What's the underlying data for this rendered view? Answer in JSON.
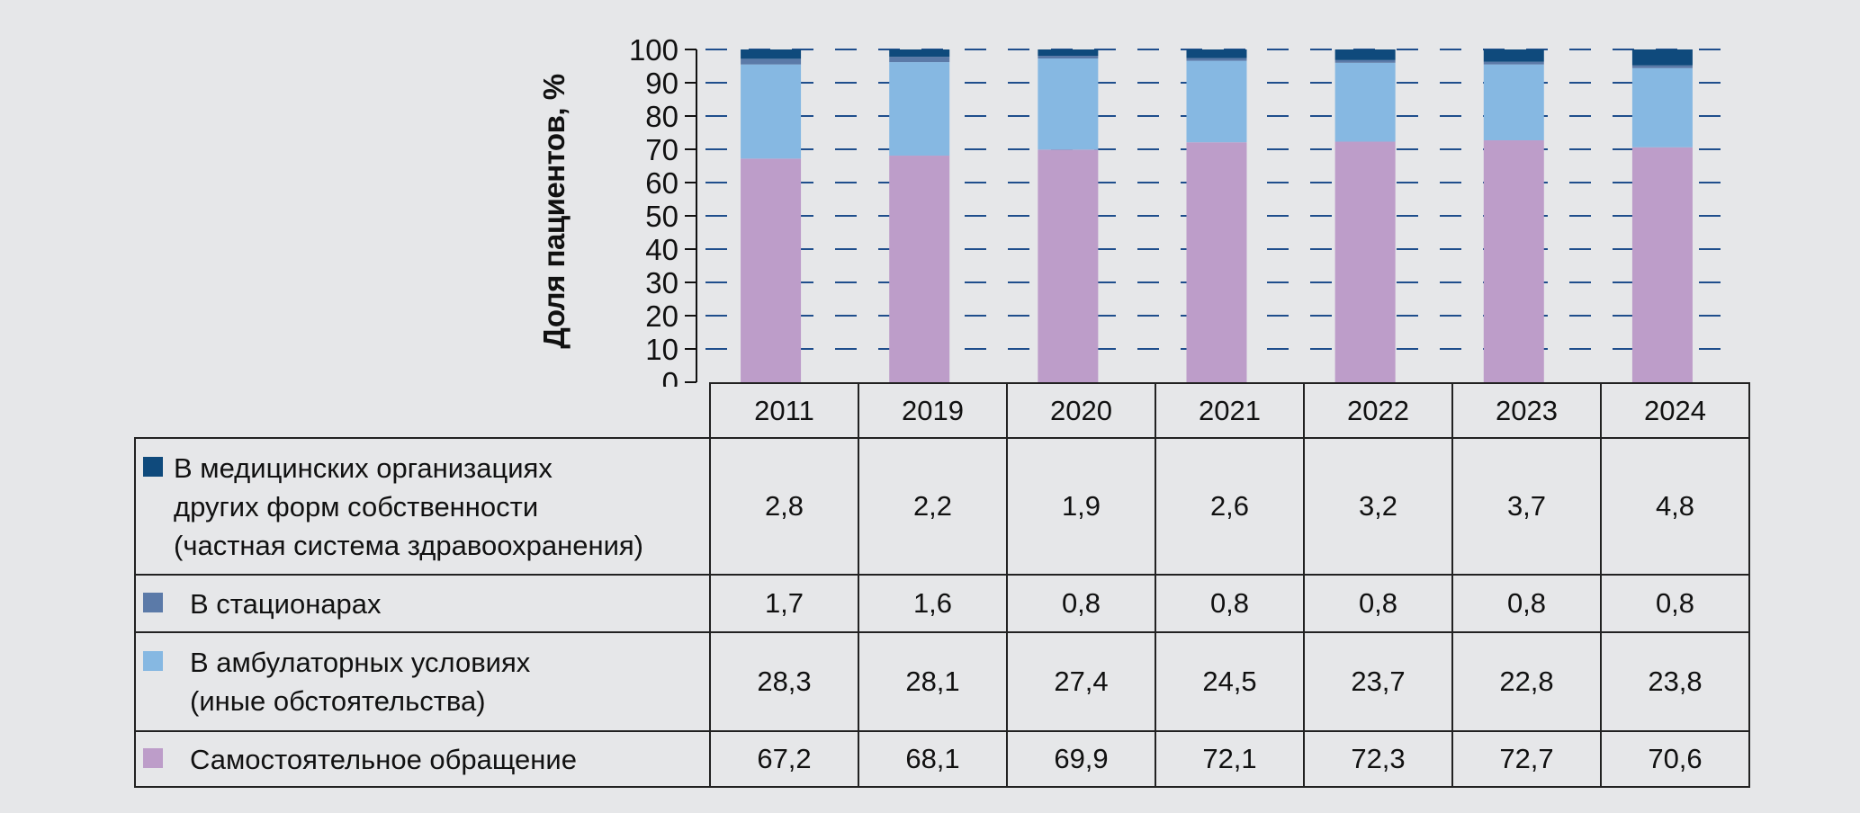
{
  "chart_data": {
    "type": "bar",
    "stacked": true,
    "ylabel": "Доля пациентов, %",
    "ylim": [
      0,
      100
    ],
    "yticks": [
      0,
      10,
      20,
      30,
      40,
      50,
      60,
      70,
      80,
      90,
      100
    ],
    "grid": "horizontal dashed",
    "categories": [
      "2011",
      "2019",
      "2020",
      "2021",
      "2022",
      "2023",
      "2024"
    ],
    "series": [
      {
        "name": "Самостоятельное обращение",
        "color": "#bd9dc9",
        "values": [
          "67,2",
          "68,1",
          "69,9",
          "72,1",
          "72,3",
          "72,7",
          "70,6"
        ]
      },
      {
        "name": "В амбулаторных условиях\n(иные обстоятельства)",
        "color": "#86b8e2",
        "values": [
          "28,3",
          "28,1",
          "27,4",
          "24,5",
          "23,7",
          "22,8",
          "23,8"
        ]
      },
      {
        "name": "В стационарах",
        "color": "#5b7aa8",
        "values": [
          "1,7",
          "1,6",
          "0,8",
          "0,8",
          "0,8",
          "0,8",
          "0,8"
        ]
      },
      {
        "name": "В медицинских организациях\nдругих форм собственности\n(частная система здравоохранения)",
        "color": "#0f4a7c",
        "values": [
          "2,8",
          "2,2",
          "1,9",
          "2,6",
          "3,2",
          "3,7",
          "4,8"
        ]
      }
    ],
    "table_row_order": [
      3,
      2,
      1,
      0
    ],
    "gridline_color": "#1f4e8c"
  }
}
